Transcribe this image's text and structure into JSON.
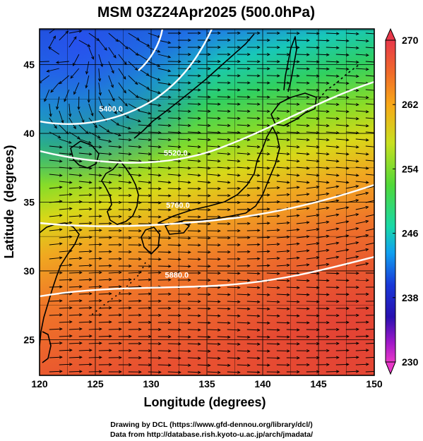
{
  "title": "MSM 03Z24Apr2025 (500.0hPa)",
  "map": {
    "x_axis_label": "Longitude (degrees)",
    "y_axis_label": "Latitude  (degrees)",
    "x_range": [
      120,
      150
    ],
    "y_range": [
      22.4,
      47.6
    ],
    "x_ticks": [
      120,
      125,
      130,
      135,
      140,
      145,
      150
    ],
    "y_ticks": [
      25,
      30,
      35,
      40,
      45
    ],
    "field": "temperature (shaded) with wind streamlines and geopotential height contours",
    "contour_labels": [
      {
        "text": "5400.0",
        "lon": 126.4,
        "lat": 41.6
      },
      {
        "text": "5520.0",
        "lon": 132.2,
        "lat": 38.4
      },
      {
        "text": "5760.0",
        "lon": 132.4,
        "lat": 34.6
      },
      {
        "text": "5880.0",
        "lon": 132.3,
        "lat": 29.5
      }
    ]
  },
  "colorbar": {
    "min": 230,
    "max": 270,
    "tick_labels": [
      "270",
      "262",
      "254",
      "246",
      "238",
      "230"
    ],
    "colors": [
      "#e8384a",
      "#f06a2a",
      "#f8a818",
      "#c8e020",
      "#50d838",
      "#18d8a8",
      "#10a0f0",
      "#1838d8",
      "#2810b0",
      "#a018c8",
      "#e838c8"
    ]
  },
  "credits": {
    "line1": "Drawing by DCL (https://www.gfd-dennou.org/library/dcl/)",
    "line2": "Data from http://database.rish.kyoto-u.ac.jp/arch/jmadata/"
  }
}
